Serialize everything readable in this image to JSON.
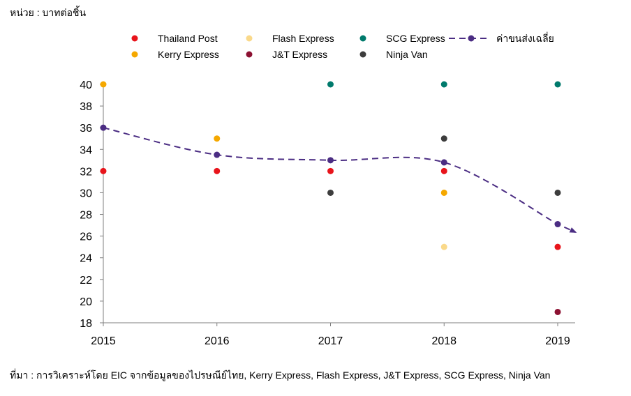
{
  "unit_label": "หน่วย : บาทต่อชิ้น",
  "source_note": "ที่มา : การวิเคราะห์โดย EIC จากข้อมูลของไปรษณีย์ไทย, Kerry Express, Flash Express, J&T Express, SCG Express, Ninja Van",
  "chart_data": {
    "type": "scatter",
    "title": "",
    "xlabel": "",
    "ylabel": "",
    "x": [
      2015,
      2016,
      2017,
      2018,
      2019
    ],
    "x_tick_labels": [
      "2015",
      "2016",
      "2017",
      "2018",
      "2019"
    ],
    "ylim": [
      18,
      40
    ],
    "y_ticks": [
      18,
      20,
      22,
      24,
      26,
      28,
      30,
      32,
      34,
      36,
      38,
      40
    ],
    "y_tick_labels": [
      "18",
      "20",
      "22",
      "24",
      "26",
      "28",
      "30",
      "32",
      "34",
      "36",
      "38",
      "40"
    ],
    "grid": false,
    "legend_position": "top",
    "series": [
      {
        "name": "Thailand Post",
        "color": "#e8141b",
        "marker": "dot",
        "points": [
          [
            2015,
            32
          ],
          [
            2016,
            32
          ],
          [
            2017,
            32
          ],
          [
            2018,
            32
          ],
          [
            2019,
            25
          ]
        ]
      },
      {
        "name": "Flash Express",
        "color": "#fad98a",
        "marker": "dot",
        "points": [
          [
            2018,
            25
          ]
        ]
      },
      {
        "name": "SCG Express",
        "color": "#007a6c",
        "marker": "dot",
        "points": [
          [
            2017,
            40
          ],
          [
            2018,
            40
          ],
          [
            2019,
            40
          ]
        ]
      },
      {
        "name": "ค่าขนส่งเฉลี่ย",
        "color": "#4b2d83",
        "marker": "dot-line-dashed",
        "points": [
          [
            2015,
            36
          ],
          [
            2016,
            33.5
          ],
          [
            2017,
            33
          ],
          [
            2018,
            32.8
          ],
          [
            2019,
            27.1
          ]
        ]
      },
      {
        "name": "Kerry Express",
        "color": "#f5a800",
        "marker": "dot",
        "points": [
          [
            2015,
            40
          ],
          [
            2016,
            35
          ],
          [
            2018,
            30
          ]
        ]
      },
      {
        "name": "J&T Express",
        "color": "#8c1132",
        "marker": "dot",
        "points": [
          [
            2019,
            19
          ]
        ]
      },
      {
        "name": "Ninja Van",
        "color": "#3d3d3d",
        "marker": "dot",
        "points": [
          [
            2017,
            30
          ],
          [
            2018,
            35
          ],
          [
            2019,
            30
          ]
        ]
      }
    ]
  }
}
